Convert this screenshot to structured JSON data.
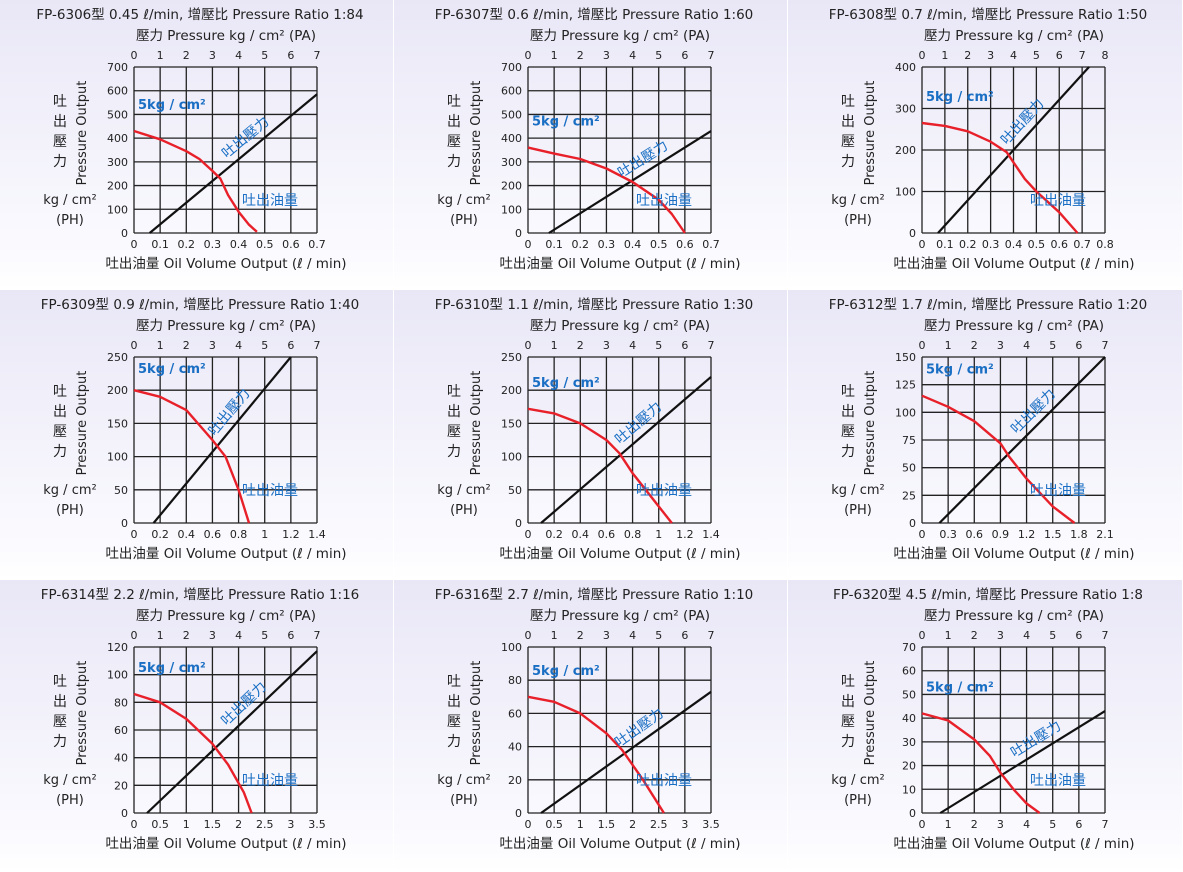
{
  "colors": {
    "curve": "#e8202a",
    "line": "#111111",
    "annotation": "#1a6fc4",
    "grid": "#222222"
  },
  "common": {
    "top_axis_label": "壓力  Pressure  kg / cm² (PA)",
    "xlabel": "吐出油量  Oil Volume Output (ℓ / min)",
    "ylabel_cn": "吐出壓力",
    "ylabel_en": "Pressure Output",
    "yunit": "kg / cm²",
    "yunit2": "(PH)",
    "anno_kg": "5kg / cm²",
    "anno_pressure": "吐出壓力",
    "anno_volume": "吐出油量"
  },
  "chart_data": [
    {
      "type": "line",
      "title": "FP-6306型  0.45 ℓ/min, 增壓比  Pressure Ratio 1:84",
      "xlim": [
        0,
        0.7
      ],
      "xticks": [
        "0",
        "0.1",
        "0.2",
        "0.3",
        "0.4",
        "0.5",
        "0.6",
        "0.7"
      ],
      "top_ticks": [
        "0",
        "1",
        "2",
        "3",
        "4",
        "5",
        "6",
        "7"
      ],
      "ylim": [
        0,
        700
      ],
      "yticks": [
        "0",
        "100",
        "200",
        "300",
        "400",
        "500",
        "600",
        "700"
      ],
      "curve": [
        [
          0,
          430
        ],
        [
          0.1,
          395
        ],
        [
          0.2,
          345
        ],
        [
          0.25,
          312
        ],
        [
          0.3,
          262
        ],
        [
          0.33,
          230
        ],
        [
          0.36,
          160
        ],
        [
          0.4,
          90
        ],
        [
          0.44,
          35
        ],
        [
          0.47,
          5
        ]
      ],
      "line": [
        [
          0.06,
          0
        ],
        [
          0.7,
          585
        ]
      ]
    },
    {
      "type": "line",
      "title": "FP-6307型  0.6 ℓ/min, 增壓比  Pressure Ratio 1:60",
      "xlim": [
        0,
        0.7
      ],
      "xticks": [
        "0",
        "0.1",
        "0.2",
        "0.3",
        "0.4",
        "0.5",
        "0.6",
        "0.7"
      ],
      "top_ticks": [
        "0",
        "1",
        "2",
        "3",
        "4",
        "5",
        "6",
        "7"
      ],
      "ylim": [
        0,
        700
      ],
      "yticks": [
        "0",
        "100",
        "200",
        "300",
        "400",
        "500",
        "600",
        "700"
      ],
      "curve": [
        [
          0,
          360
        ],
        [
          0.1,
          335
        ],
        [
          0.2,
          312
        ],
        [
          0.3,
          272
        ],
        [
          0.4,
          215
        ],
        [
          0.5,
          140
        ],
        [
          0.55,
          80
        ],
        [
          0.6,
          0
        ]
      ],
      "line": [
        [
          0.08,
          0
        ],
        [
          0.7,
          430
        ]
      ]
    },
    {
      "type": "line",
      "title": "FP-6308型   0.7 ℓ/min, 增壓比  Pressure Ratio 1:50",
      "xlim": [
        0,
        0.8
      ],
      "xticks": [
        "0",
        "0.1",
        "0.2",
        "0.3",
        "0.4",
        "0.5",
        "0.6",
        "0.7",
        "0.8"
      ],
      "top_ticks": [
        "0",
        "1",
        "2",
        "3",
        "4",
        "5",
        "6",
        "7",
        "8"
      ],
      "ylim": [
        0,
        400
      ],
      "yticks": [
        "0",
        "100",
        "200",
        "300",
        "400"
      ],
      "curve": [
        [
          0,
          265
        ],
        [
          0.1,
          258
        ],
        [
          0.2,
          245
        ],
        [
          0.3,
          220
        ],
        [
          0.37,
          195
        ],
        [
          0.4,
          170
        ],
        [
          0.45,
          130
        ],
        [
          0.5,
          100
        ],
        [
          0.6,
          50
        ],
        [
          0.68,
          0
        ]
      ],
      "line": [
        [
          0.07,
          0
        ],
        [
          0.73,
          400
        ]
      ]
    },
    {
      "type": "line",
      "title": "FP-6309型  0.9 ℓ/min, 增壓比  Pressure Ratio 1:40",
      "xlim": [
        0,
        1.4
      ],
      "xticks": [
        "0",
        "0.2",
        "0.4",
        "0.6",
        "0.8",
        "1",
        "1.2",
        "1.4"
      ],
      "top_ticks": [
        "0",
        "1",
        "2",
        "3",
        "4",
        "5",
        "6",
        "7"
      ],
      "ylim": [
        0,
        250
      ],
      "yticks": [
        "0",
        "50",
        "100",
        "150",
        "200",
        "250"
      ],
      "curve": [
        [
          0,
          200
        ],
        [
          0.2,
          190
        ],
        [
          0.4,
          170
        ],
        [
          0.6,
          125
        ],
        [
          0.7,
          100
        ],
        [
          0.8,
          50
        ],
        [
          0.88,
          0
        ]
      ],
      "line": [
        [
          0.15,
          0
        ],
        [
          1.2,
          250
        ]
      ]
    },
    {
      "type": "line",
      "title": "FP-6310型  1.1 ℓ/min, 增壓比  Pressure Ratio 1:30",
      "xlim": [
        0,
        1.4
      ],
      "xticks": [
        "0",
        "0.2",
        "0.4",
        "0.6",
        "0.8",
        "1",
        "1.2",
        "1.4"
      ],
      "top_ticks": [
        "0",
        "1",
        "2",
        "3",
        "4",
        "5",
        "6",
        "7"
      ],
      "ylim": [
        0,
        250
      ],
      "yticks": [
        "0",
        "50",
        "100",
        "150",
        "200",
        "250"
      ],
      "curve": [
        [
          0,
          172
        ],
        [
          0.2,
          165
        ],
        [
          0.4,
          150
        ],
        [
          0.6,
          125
        ],
        [
          0.7,
          105
        ],
        [
          0.8,
          75
        ],
        [
          1.0,
          25
        ],
        [
          1.1,
          0
        ]
      ],
      "line": [
        [
          0.1,
          0
        ],
        [
          1.4,
          220
        ]
      ]
    },
    {
      "type": "line",
      "title": "FP-6312型  1.7 ℓ/min, 增壓比  Pressure Ratio 1:20",
      "xlim": [
        0,
        2.1
      ],
      "xticks": [
        "0",
        "0.3",
        "0.6",
        "0.9",
        "1.2",
        "1.5",
        "1.8",
        "2.1"
      ],
      "top_ticks": [
        "0",
        "1",
        "2",
        "3",
        "4",
        "5",
        "6",
        "7"
      ],
      "ylim": [
        0,
        150
      ],
      "yticks": [
        "0",
        "25",
        "50",
        "75",
        "100",
        "125",
        "150"
      ],
      "curve": [
        [
          0,
          115
        ],
        [
          0.3,
          105
        ],
        [
          0.6,
          92
        ],
        [
          0.9,
          72
        ],
        [
          1.0,
          60
        ],
        [
          1.2,
          40
        ],
        [
          1.5,
          15
        ],
        [
          1.75,
          0
        ]
      ],
      "line": [
        [
          0.2,
          0
        ],
        [
          2.1,
          150
        ]
      ]
    },
    {
      "type": "line",
      "title": "FP-6314型  2.2 ℓ/min, 增壓比  Pressure Ratio 1:16",
      "xlim": [
        0,
        3.5
      ],
      "xticks": [
        "0",
        "0.5",
        "1",
        "1.5",
        "2",
        "2.5",
        "3",
        "3.5"
      ],
      "top_ticks": [
        "0",
        "1",
        "2",
        "3",
        "4",
        "5",
        "6",
        "7"
      ],
      "ylim": [
        0,
        120
      ],
      "yticks": [
        "0",
        "20",
        "40",
        "60",
        "80",
        "100",
        "120"
      ],
      "curve": [
        [
          0,
          86
        ],
        [
          0.5,
          80
        ],
        [
          1,
          68
        ],
        [
          1.5,
          50
        ],
        [
          1.8,
          35
        ],
        [
          2.1,
          15
        ],
        [
          2.25,
          0
        ]
      ],
      "line": [
        [
          0.25,
          0
        ],
        [
          3.5,
          117
        ]
      ]
    },
    {
      "type": "line",
      "title": "FP-6316型  2.7 ℓ/min, 增壓比  Pressure Ratio 1:10",
      "xlim": [
        0,
        3.5
      ],
      "xticks": [
        "0",
        "0.5",
        "1",
        "1.5",
        "2",
        "2.5",
        "3",
        "3.5"
      ],
      "top_ticks": [
        "0",
        "1",
        "2",
        "3",
        "4",
        "5",
        "6",
        "7"
      ],
      "ylim": [
        0,
        100
      ],
      "yticks": [
        "0",
        "20",
        "40",
        "60",
        "80",
        "100"
      ],
      "curve": [
        [
          0,
          70
        ],
        [
          0.5,
          67
        ],
        [
          1,
          60
        ],
        [
          1.5,
          48
        ],
        [
          1.8,
          38
        ],
        [
          2.2,
          20
        ],
        [
          2.6,
          0
        ]
      ],
      "line": [
        [
          0.25,
          0
        ],
        [
          3.5,
          73
        ]
      ]
    },
    {
      "type": "line",
      "title": "FP-6320型  4.5 ℓ/min, 增壓比  Pressure Ratio 1:8",
      "xlim": [
        0,
        7
      ],
      "xticks": [
        "0",
        "1",
        "2",
        "3",
        "4",
        "5",
        "6",
        "7"
      ],
      "top_ticks": [
        "0",
        "1",
        "2",
        "3",
        "4",
        "5",
        "6",
        "7"
      ],
      "ylim": [
        0,
        70
      ],
      "yticks": [
        "0",
        "10",
        "20",
        "30",
        "40",
        "50",
        "60",
        "70"
      ],
      "curve": [
        [
          0,
          42
        ],
        [
          1,
          39
        ],
        [
          2,
          31
        ],
        [
          2.6,
          24
        ],
        [
          3,
          17
        ],
        [
          3.5,
          10
        ],
        [
          4,
          4
        ],
        [
          4.5,
          0
        ]
      ],
      "line": [
        [
          0.7,
          0
        ],
        [
          7,
          43
        ]
      ]
    }
  ]
}
